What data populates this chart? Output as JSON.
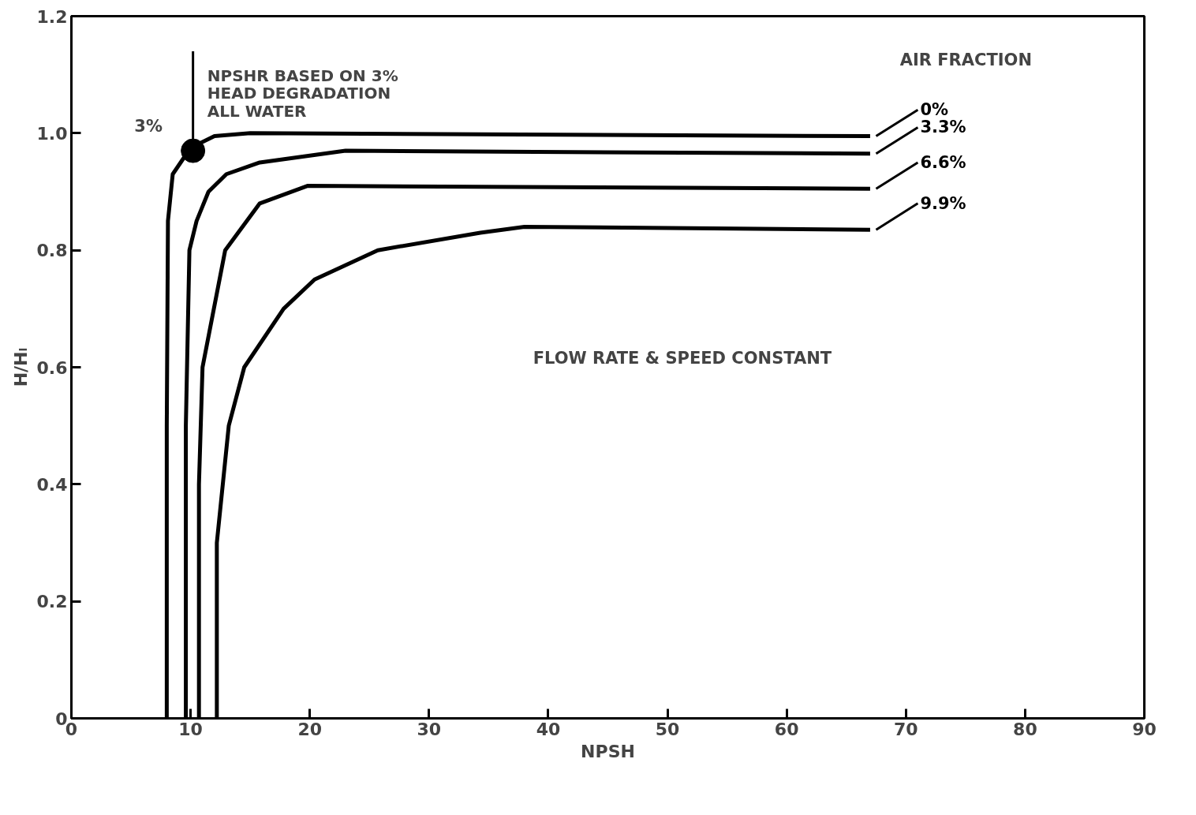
{
  "chart_data": {
    "type": "line",
    "xlabel": "NPSH",
    "ylabel": "H/Hₗ",
    "legend_title": "AIR FRACTION",
    "xlim": [
      0,
      90
    ],
    "ylim": [
      0,
      1.2
    ],
    "xticks": [
      0,
      10,
      20,
      30,
      40,
      50,
      60,
      70,
      80,
      90
    ],
    "yticks": [
      0,
      0.2,
      0.4,
      0.6,
      0.8,
      {
        "value": 1.0,
        "label": "1.0"
      },
      1.2
    ],
    "grid": false,
    "marker": "none",
    "line_style": "solid",
    "series": [
      {
        "name": "0%",
        "color": "#000000",
        "x": [
          8.0,
          8.0,
          8.1,
          8.5,
          9.5,
          10.5,
          12,
          15,
          67
        ],
        "values": [
          0,
          0.5,
          0.85,
          0.93,
          0.96,
          0.98,
          0.995,
          1.0,
          0.995
        ]
      },
      {
        "name": "3.3%",
        "color": "#000000",
        "x": [
          9.6,
          9.6,
          9.9,
          10.5,
          11.5,
          13,
          15.8,
          23,
          67
        ],
        "values": [
          0,
          0.5,
          0.8,
          0.85,
          0.9,
          0.93,
          0.95,
          0.97,
          0.965
        ]
      },
      {
        "name": "6.6%",
        "color": "#000000",
        "x": [
          10.7,
          10.7,
          11,
          12.9,
          15.8,
          19.8,
          67
        ],
        "values": [
          0,
          0.4,
          0.6,
          0.8,
          0.88,
          0.91,
          0.905
        ]
      },
      {
        "name": "9.9%",
        "color": "#000000",
        "x": [
          12.2,
          12.2,
          13.2,
          14.5,
          17.8,
          20.4,
          25.7,
          34.3,
          38,
          67
        ],
        "values": [
          0,
          0.3,
          0.5,
          0.6,
          0.7,
          0.75,
          0.8,
          0.83,
          0.84,
          0.835
        ]
      },
      {
        "type": "scatter",
        "color": "#000000",
        "marker": "circle",
        "x": [
          10.2
        ],
        "values": [
          0.97
        ]
      }
    ],
    "annotations": [
      {
        "text": "NPSHR BASED ON 3%\nHEAD DEGRADATION\nALL WATER",
        "x": 10.2,
        "y": 0.97
      },
      "3%",
      "FLOW RATE & SPEED CONSTANT"
    ]
  }
}
